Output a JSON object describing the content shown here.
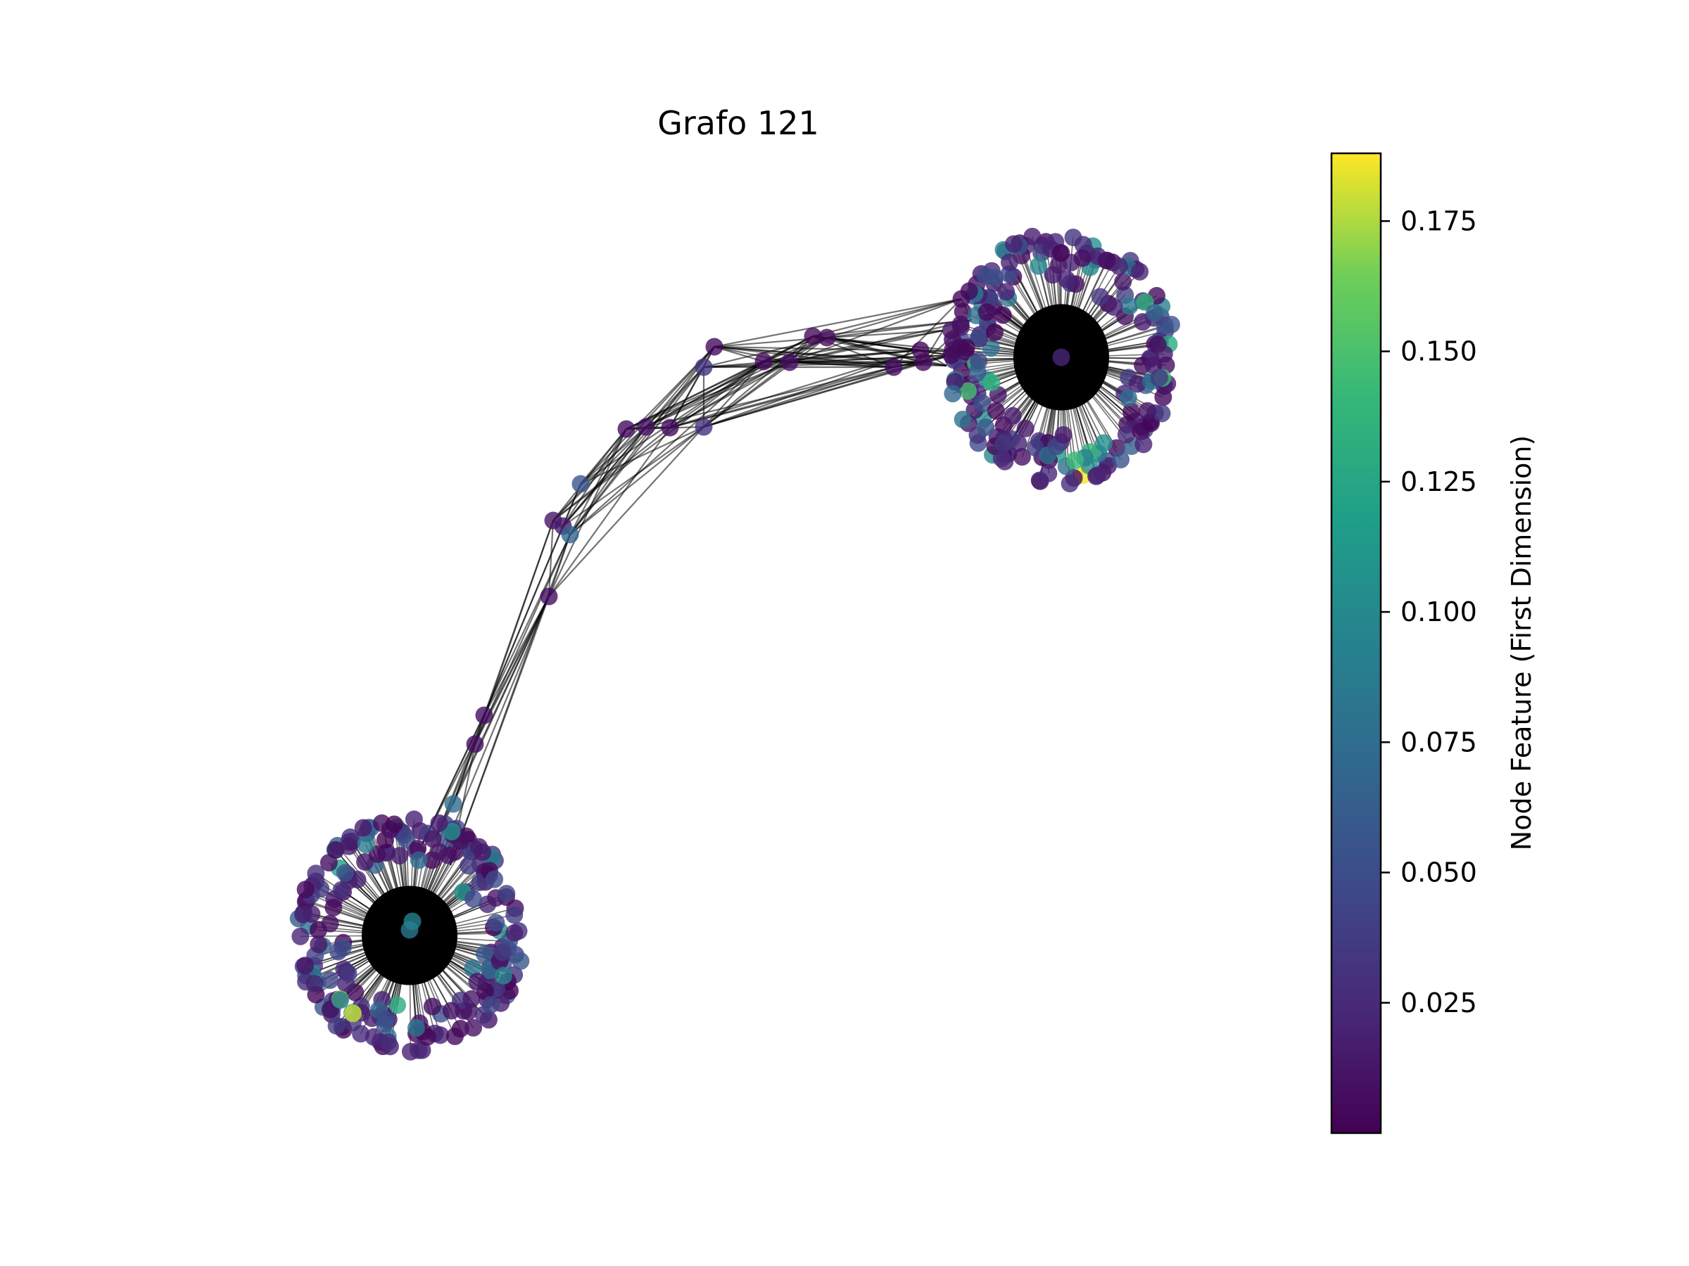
{
  "title": "Grafo 121",
  "colorbar": {
    "label": "Node Feature (First Dimension)",
    "min": 0.0,
    "max": 0.188,
    "colormap": "viridis",
    "ticks": [
      {
        "value": 0.025,
        "label": "0.025"
      },
      {
        "value": 0.05,
        "label": "0.050"
      },
      {
        "value": 0.075,
        "label": "0.075"
      },
      {
        "value": 0.1,
        "label": "0.100"
      },
      {
        "value": 0.125,
        "label": "0.125"
      },
      {
        "value": 0.15,
        "label": "0.150"
      },
      {
        "value": 0.175,
        "label": "0.175"
      }
    ]
  },
  "graph": {
    "edge_color": "#000000",
    "node_alpha": 0.8
  }
}
